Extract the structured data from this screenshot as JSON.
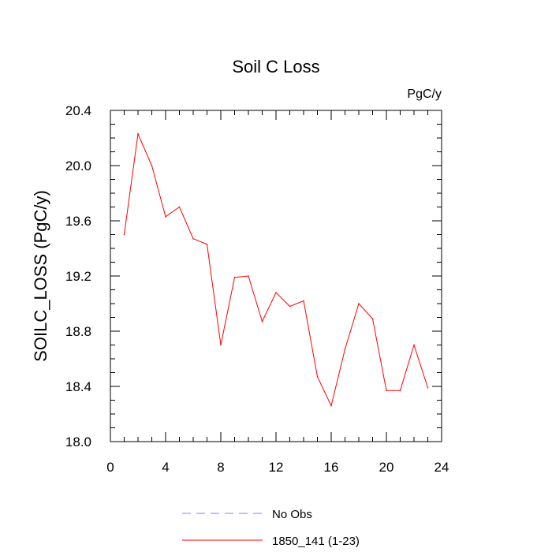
{
  "chart_data": {
    "type": "line",
    "title": "Soil C Loss",
    "units_label": "PgC/y",
    "xlabel": "",
    "ylabel": "SOILC_LOSS  (PgC/y)",
    "xlim": [
      0,
      24
    ],
    "ylim": [
      18.0,
      20.4
    ],
    "x_ticks": [
      "0",
      "4",
      "8",
      "12",
      "16",
      "20",
      "24"
    ],
    "y_ticks": [
      "18.0",
      "18.4",
      "18.8",
      "19.2",
      "19.6",
      "20.0",
      "20.4"
    ],
    "grid": false,
    "legend_position": "bottom",
    "legend": [
      {
        "label": "No Obs",
        "color": "#8080ff",
        "dash": "dashed"
      },
      {
        "label": "1850_141 (1-23)",
        "color": "#ff0000",
        "dash": "solid"
      }
    ],
    "series": [
      {
        "name": "1850_141 (1-23)",
        "color": "#ff0000",
        "x": [
          1,
          2,
          3,
          4,
          5,
          6,
          7,
          8,
          9,
          10,
          11,
          12,
          13,
          14,
          15,
          16,
          17,
          18,
          19,
          20,
          21,
          22,
          23
        ],
        "y": [
          19.5,
          20.23,
          20.0,
          19.63,
          19.7,
          19.47,
          19.43,
          18.7,
          19.19,
          19.2,
          18.87,
          19.08,
          18.98,
          19.02,
          18.47,
          18.26,
          18.67,
          19.0,
          18.89,
          18.37,
          18.37,
          18.7,
          18.39
        ]
      }
    ]
  }
}
